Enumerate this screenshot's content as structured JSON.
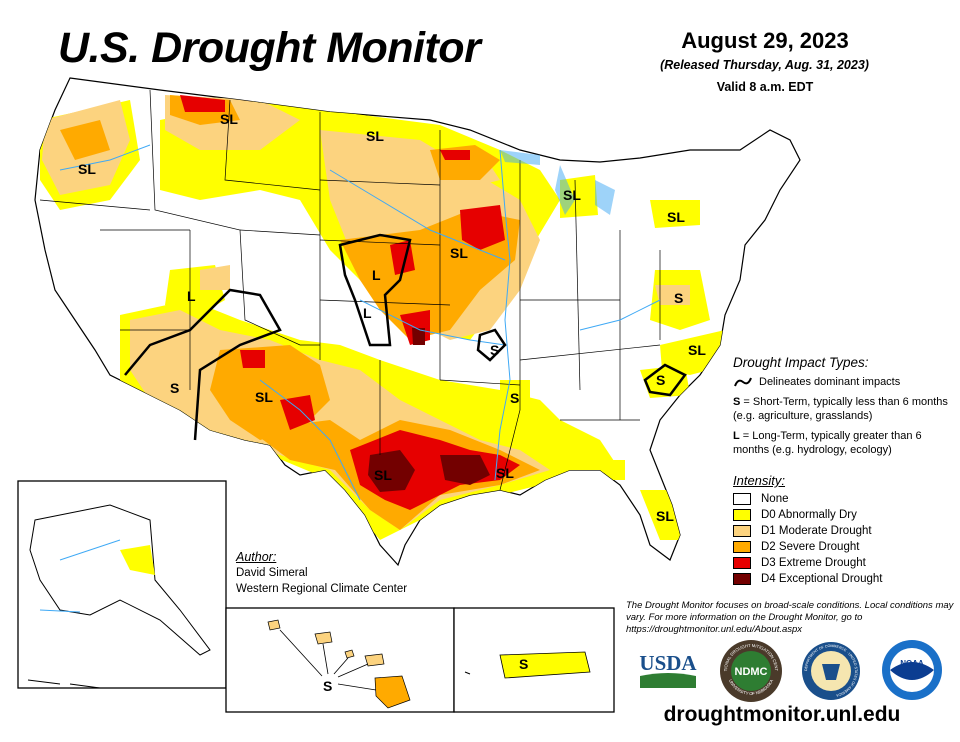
{
  "title": "U.S. Drought Monitor",
  "date": "August 29, 2023",
  "released": "(Released Thursday, Aug. 31, 2023)",
  "valid": "Valid 8 a.m. EDT",
  "colors": {
    "none": "#ffffff",
    "d0": "#ffff00",
    "d1": "#fcd37f",
    "d2": "#ffaa00",
    "d3": "#e60000",
    "d4": "#730000",
    "water": "#3fa9f5"
  },
  "region_labels": [
    {
      "id": "pacific-northwest",
      "text": "SL"
    },
    {
      "id": "northern-rockies",
      "text": "SL"
    },
    {
      "id": "north-dakota",
      "text": "SL"
    },
    {
      "id": "iowa",
      "text": "SL"
    },
    {
      "id": "michigan",
      "text": "SL"
    },
    {
      "id": "new-york",
      "text": "SL"
    },
    {
      "id": "virginia",
      "text": "S"
    },
    {
      "id": "north-carolina",
      "text": "SL"
    },
    {
      "id": "south-carolina",
      "text": "S"
    },
    {
      "id": "nebraska",
      "text": "L"
    },
    {
      "id": "kansas",
      "text": "L"
    },
    {
      "id": "missouri",
      "text": "S"
    },
    {
      "id": "mississippi",
      "text": "S"
    },
    {
      "id": "texas",
      "text": "SL"
    },
    {
      "id": "louisiana",
      "text": "SL"
    },
    {
      "id": "florida",
      "text": "SL"
    },
    {
      "id": "new-mexico",
      "text": "SL"
    },
    {
      "id": "arizona",
      "text": "S"
    },
    {
      "id": "utah",
      "text": "L"
    },
    {
      "id": "hawaii",
      "text": "S"
    },
    {
      "id": "puerto-rico",
      "text": "S"
    }
  ],
  "impact_types": {
    "title": "Drought Impact Types:",
    "delineates": "Delineates dominant impacts",
    "short_key": "S",
    "short_text": " = Short-Term, typically less than 6 months (e.g. agriculture, grasslands)",
    "long_key": "L",
    "long_text": " = Long-Term, typically greater than 6 months (e.g. hydrology, ecology)"
  },
  "intensity": {
    "title": "Intensity:",
    "items": [
      {
        "label": "None",
        "color": "#ffffff"
      },
      {
        "label": "D0 Abnormally Dry",
        "color": "#ffff00"
      },
      {
        "label": "D1 Moderate Drought",
        "color": "#fcd37f"
      },
      {
        "label": "D2 Severe Drought",
        "color": "#ffaa00"
      },
      {
        "label": "D3 Extreme Drought",
        "color": "#e60000"
      },
      {
        "label": "D4 Exceptional Drought",
        "color": "#730000"
      }
    ]
  },
  "author": {
    "heading": "Author:",
    "name": "David Simeral",
    "org": "Western Regional Climate Center"
  },
  "disclaimer": "The Drought Monitor focuses on broad-scale conditions. Local conditions may vary. For more information on the Drought Monitor, go to https://droughtmonitor.unl.edu/About.aspx",
  "logos": {
    "usda": "USDA",
    "ndmc": "NDMC",
    "ndmc_ring_top": "NATIONAL DROUGHT MITIGATION CENTER",
    "ndmc_ring_bottom": "UNIVERSITY OF NEBRASKA",
    "commerce_ring": "DEPARTMENT OF COMMERCE · UNITED STATES OF AMERICA",
    "noaa": "NOAA"
  },
  "url": "droughtmonitor.unl.edu"
}
